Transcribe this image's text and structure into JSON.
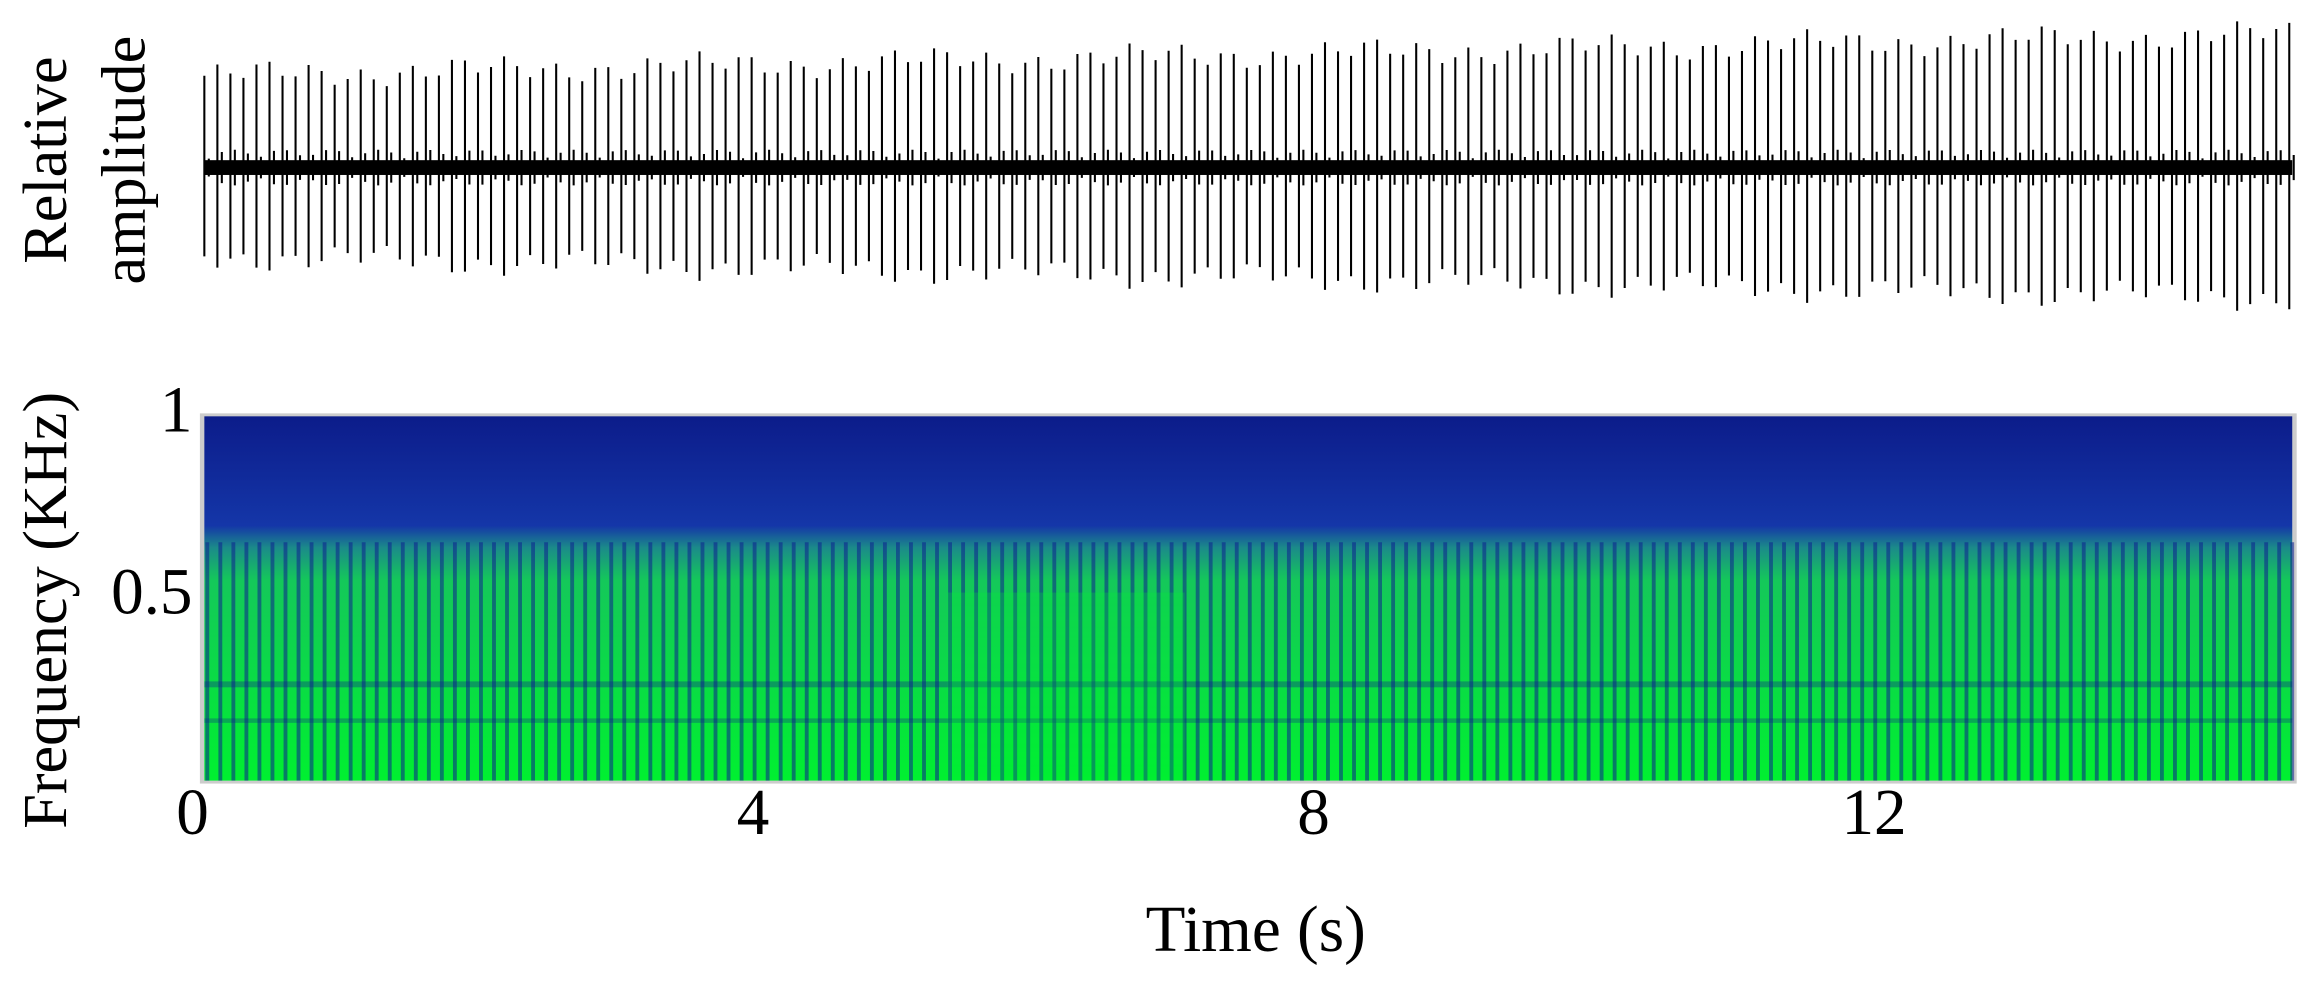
{
  "chart_data": [
    {
      "type": "waveform",
      "ylabel": [
        "Relative",
        "amplitude"
      ],
      "color": "#000000"
    },
    {
      "type": "spectrogram",
      "ylabel": "Frequency (KHz)",
      "xlabel": "Time (s)",
      "xlim": [
        0,
        14.9
      ],
      "ylim": [
        0,
        1
      ],
      "xticks": [
        0,
        4,
        8,
        12
      ],
      "yticks": [
        0.5,
        1
      ],
      "colors": [
        "#0c1f8f",
        "#00ee33"
      ]
    }
  ]
}
